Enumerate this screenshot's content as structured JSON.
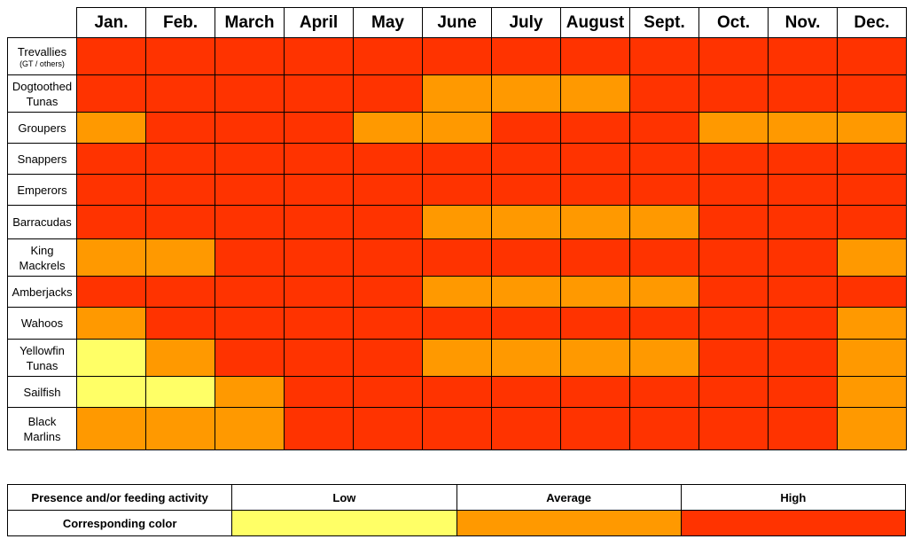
{
  "chart_data": {
    "type": "heatmap",
    "months": [
      "Jan.",
      "Feb.",
      "March",
      "April",
      "May",
      "June",
      "July",
      "August",
      "Sept.",
      "Oct.",
      "Nov.",
      "Dec."
    ],
    "levels": [
      "Low",
      "Average",
      "High"
    ],
    "level_colors": {
      "Low": "#ffff66",
      "Average": "#ff9900",
      "High": "#ff3300"
    },
    "rows": [
      {
        "species": "Trevallies",
        "sub": "(GT / others)",
        "values": [
          "High",
          "High",
          "High",
          "High",
          "High",
          "High",
          "High",
          "High",
          "High",
          "High",
          "High",
          "High"
        ]
      },
      {
        "species": "Dogtoothed Tunas",
        "sub": "",
        "values": [
          "High",
          "High",
          "High",
          "High",
          "High",
          "Average",
          "Average",
          "Average",
          "High",
          "High",
          "High",
          "High"
        ]
      },
      {
        "species": "Groupers",
        "sub": "",
        "values": [
          "Average",
          "High",
          "High",
          "High",
          "Average",
          "Average",
          "High",
          "High",
          "High",
          "Average",
          "Average",
          "Average"
        ]
      },
      {
        "species": "Snappers",
        "sub": "",
        "values": [
          "High",
          "High",
          "High",
          "High",
          "High",
          "High",
          "High",
          "High",
          "High",
          "High",
          "High",
          "High"
        ]
      },
      {
        "species": "Emperors",
        "sub": "",
        "values": [
          "High",
          "High",
          "High",
          "High",
          "High",
          "High",
          "High",
          "High",
          "High",
          "High",
          "High",
          "High"
        ]
      },
      {
        "species": "Barracudas",
        "sub": "",
        "values": [
          "High",
          "High",
          "High",
          "High",
          "High",
          "Average",
          "Average",
          "Average",
          "Average",
          "High",
          "High",
          "High"
        ]
      },
      {
        "species": "King Mackrels",
        "sub": "",
        "values": [
          "Average",
          "Average",
          "High",
          "High",
          "High",
          "High",
          "High",
          "High",
          "High",
          "High",
          "High",
          "Average"
        ]
      },
      {
        "species": "Amberjacks",
        "sub": "",
        "values": [
          "High",
          "High",
          "High",
          "High",
          "High",
          "Average",
          "Average",
          "Average",
          "Average",
          "High",
          "High",
          "High"
        ]
      },
      {
        "species": "Wahoos",
        "sub": "",
        "values": [
          "Average",
          "High",
          "High",
          "High",
          "High",
          "High",
          "High",
          "High",
          "High",
          "High",
          "High",
          "Average"
        ]
      },
      {
        "species": "Yellowfin Tunas",
        "sub": "",
        "values": [
          "Low",
          "Average",
          "High",
          "High",
          "High",
          "Average",
          "Average",
          "Average",
          "Average",
          "High",
          "High",
          "Average"
        ]
      },
      {
        "species": "Sailfish",
        "sub": "",
        "values": [
          "Low",
          "Low",
          "Average",
          "High",
          "High",
          "High",
          "High",
          "High",
          "High",
          "High",
          "High",
          "Average"
        ]
      },
      {
        "species": "Black Marlins",
        "sub": "",
        "values": [
          "Average",
          "Average",
          "Average",
          "High",
          "High",
          "High",
          "High",
          "High",
          "High",
          "High",
          "High",
          "Average"
        ]
      }
    ]
  },
  "legend": {
    "header": "Presence and/or feeding activity",
    "color_label": "Corresponding color",
    "items": [
      "Low",
      "Average",
      "High"
    ]
  }
}
